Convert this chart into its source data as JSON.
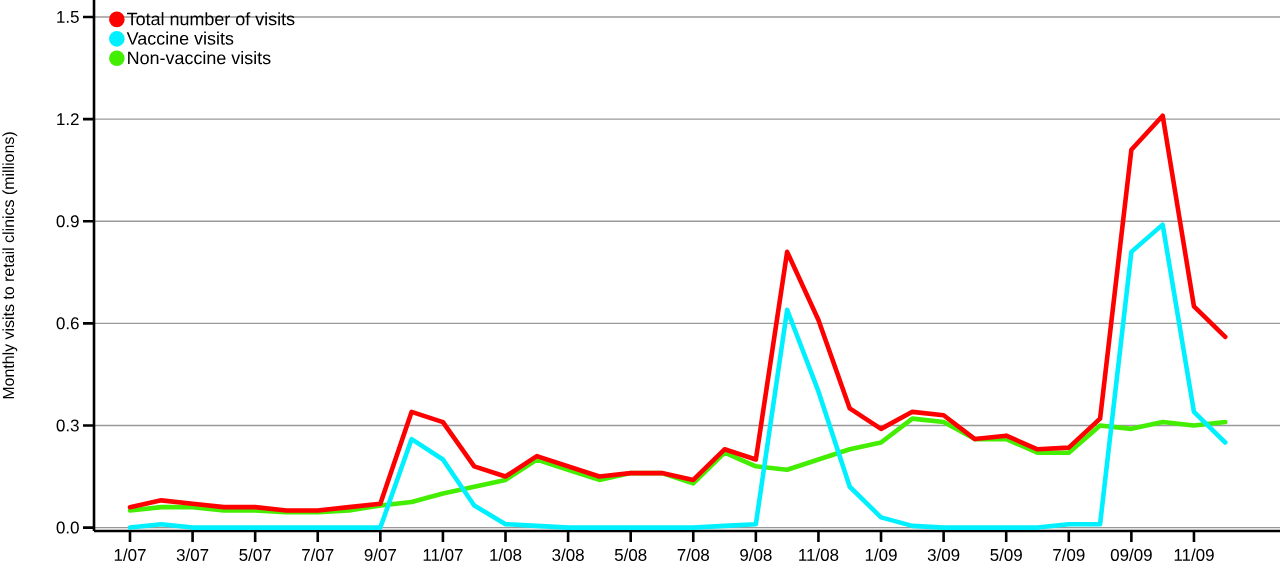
{
  "chart_data": {
    "type": "line",
    "ylabel": "Monthly visits to retail clinics (millions)",
    "categories": [
      "1/07",
      null,
      "3/07",
      null,
      "5/07",
      null,
      "7/07",
      null,
      "9/07",
      null,
      "11/07",
      null,
      "1/08",
      null,
      "3/08",
      null,
      "5/08",
      null,
      "7/08",
      null,
      "9/08",
      null,
      "11/08",
      null,
      "1/09",
      null,
      "3/09",
      null,
      "5/09",
      null,
      "7/09",
      null,
      "09/09",
      null,
      "11/09",
      null
    ],
    "series": [
      {
        "name": "Total number of visits",
        "color": "#ff0000",
        "values": [
          0.06,
          0.08,
          0.07,
          0.06,
          0.06,
          0.05,
          0.05,
          0.06,
          0.07,
          0.34,
          0.31,
          0.18,
          0.15,
          0.21,
          0.18,
          0.15,
          0.16,
          0.16,
          0.14,
          0.23,
          0.2,
          0.81,
          0.61,
          0.35,
          0.29,
          0.34,
          0.33,
          0.26,
          0.27,
          0.23,
          0.235,
          0.32,
          1.11,
          1.21,
          0.65,
          0.56
        ]
      },
      {
        "name": "Vaccine visits",
        "color": "#00f0ff",
        "values": [
          0.0,
          0.01,
          0.0,
          0.0,
          0.0,
          0.0,
          0.0,
          0.0,
          0.0,
          0.26,
          0.2,
          0.065,
          0.01,
          0.005,
          0.0,
          0.0,
          0.0,
          0.0,
          0.0,
          0.005,
          0.01,
          0.64,
          0.4,
          0.12,
          0.03,
          0.005,
          0.0,
          0.0,
          0.0,
          0.0,
          0.01,
          0.01,
          0.81,
          0.89,
          0.34,
          0.25
        ]
      },
      {
        "name": "Non-vaccine visits",
        "color": "#44ee00",
        "values": [
          0.05,
          0.06,
          0.06,
          0.05,
          0.05,
          0.045,
          0.045,
          0.05,
          0.065,
          0.075,
          0.1,
          0.12,
          0.14,
          0.2,
          0.17,
          0.14,
          0.16,
          0.16,
          0.13,
          0.22,
          0.18,
          0.17,
          0.2,
          0.23,
          0.25,
          0.32,
          0.31,
          0.26,
          0.26,
          0.22,
          0.22,
          0.3,
          0.29,
          0.31,
          0.3,
          0.31
        ]
      }
    ],
    "ylim": [
      -0.01,
      1.55
    ],
    "yticks": [
      {
        "value": 0,
        "label": "0.0"
      },
      0.3,
      0.6,
      0.9,
      1.2,
      1.5
    ],
    "grid": "y",
    "legend": "top left"
  }
}
